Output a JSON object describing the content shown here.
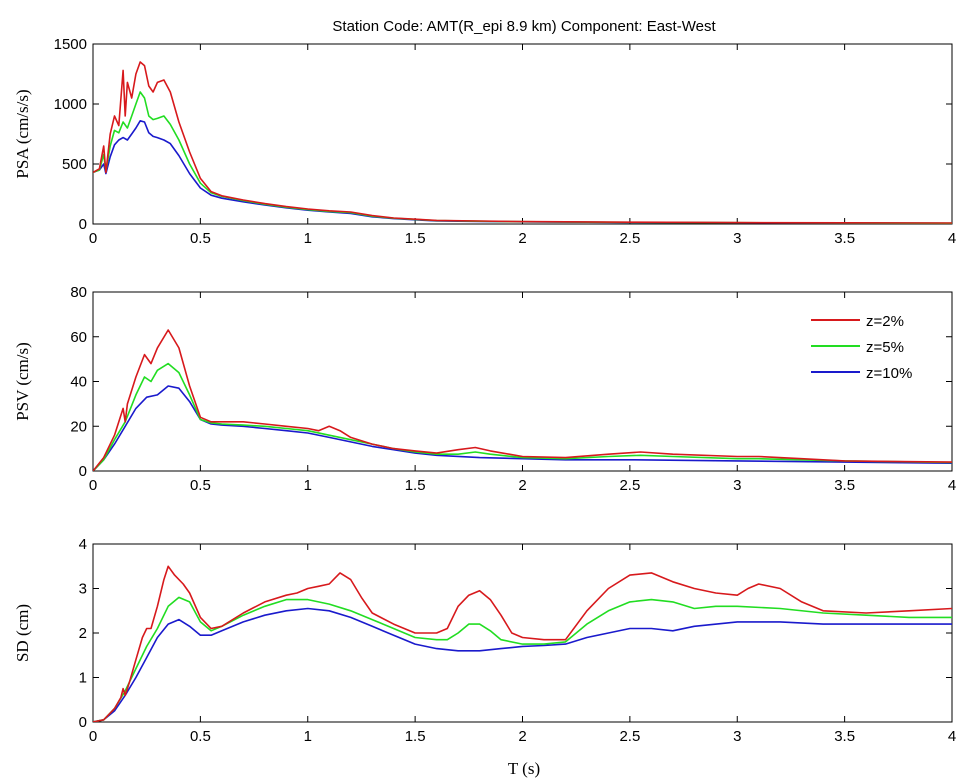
{
  "figure": {
    "title": "Station Code: AMT(R_epi 8.9 km) Component: East-West",
    "xlabel": "T (s)"
  },
  "colors": {
    "z2": "#d7191c",
    "z5": "#22dd22",
    "z10": "#1a1acc"
  },
  "chart_data": [
    {
      "type": "line",
      "ylabel": "PSA (cm/s/s)",
      "xlim": [
        0,
        4
      ],
      "ylim": [
        0,
        1500
      ],
      "xticks": [
        "0",
        "0.5",
        "1",
        "1.5",
        "2",
        "2.5",
        "3",
        "3.5",
        "4"
      ],
      "yticks": [
        "0",
        "500",
        "1000",
        "1500"
      ],
      "grid": false,
      "series": [
        {
          "key": "z2",
          "x": [
            0,
            0.03,
            0.05,
            0.06,
            0.08,
            0.1,
            0.12,
            0.14,
            0.15,
            0.16,
            0.18,
            0.2,
            0.22,
            0.24,
            0.26,
            0.28,
            0.3,
            0.33,
            0.36,
            0.4,
            0.45,
            0.5,
            0.55,
            0.6,
            0.7,
            0.8,
            0.9,
            1.0,
            1.1,
            1.2,
            1.3,
            1.4,
            1.5,
            1.6,
            1.8,
            2.0,
            2.2,
            2.5,
            3.0,
            3.5,
            4.0
          ],
          "y": [
            430,
            460,
            650,
            430,
            750,
            900,
            820,
            1280,
            900,
            1180,
            1050,
            1250,
            1350,
            1320,
            1150,
            1100,
            1180,
            1200,
            1100,
            850,
            600,
            380,
            270,
            235,
            200,
            170,
            145,
            125,
            110,
            100,
            70,
            50,
            40,
            30,
            25,
            20,
            18,
            15,
            12,
            10,
            8
          ]
        },
        {
          "key": "z5",
          "x": [
            0,
            0.03,
            0.05,
            0.06,
            0.08,
            0.1,
            0.12,
            0.14,
            0.16,
            0.18,
            0.2,
            0.22,
            0.24,
            0.26,
            0.28,
            0.3,
            0.33,
            0.36,
            0.4,
            0.45,
            0.5,
            0.55,
            0.6,
            0.7,
            0.8,
            0.9,
            1.0,
            1.1,
            1.2,
            1.3,
            1.4,
            1.5,
            1.6,
            1.8,
            2.0,
            2.2,
            2.5,
            3.0,
            3.5,
            4.0
          ],
          "y": [
            430,
            450,
            580,
            440,
            650,
            780,
            760,
            850,
            800,
            900,
            1000,
            1100,
            1050,
            900,
            870,
            880,
            900,
            830,
            700,
            500,
            340,
            260,
            230,
            195,
            165,
            140,
            120,
            105,
            95,
            65,
            48,
            38,
            28,
            23,
            19,
            17,
            14,
            11,
            9,
            7
          ]
        },
        {
          "key": "z10",
          "x": [
            0,
            0.03,
            0.05,
            0.06,
            0.08,
            0.1,
            0.12,
            0.14,
            0.16,
            0.18,
            0.2,
            0.22,
            0.24,
            0.26,
            0.28,
            0.3,
            0.33,
            0.36,
            0.4,
            0.45,
            0.5,
            0.55,
            0.6,
            0.7,
            0.8,
            0.9,
            1.0,
            1.1,
            1.2,
            1.3,
            1.4,
            1.5,
            1.6,
            1.8,
            2.0,
            2.2,
            2.5,
            3.0,
            3.5,
            4.0
          ],
          "y": [
            430,
            450,
            500,
            420,
            560,
            660,
            700,
            720,
            700,
            750,
            800,
            860,
            850,
            760,
            730,
            720,
            700,
            670,
            570,
            420,
            300,
            240,
            215,
            185,
            158,
            135,
            115,
            100,
            88,
            60,
            45,
            35,
            26,
            21,
            18,
            16,
            13,
            10,
            8,
            6
          ]
        }
      ]
    },
    {
      "type": "line",
      "ylabel": "PSV (cm/s)",
      "xlim": [
        0,
        4
      ],
      "ylim": [
        0,
        80
      ],
      "xticks": [
        "0",
        "0.5",
        "1",
        "1.5",
        "2",
        "2.5",
        "3",
        "3.5",
        "4"
      ],
      "yticks": [
        "0",
        "20",
        "40",
        "60",
        "80"
      ],
      "grid": false,
      "legend": {
        "placement": "top-right",
        "entries": [
          {
            "key": "z2",
            "label": "z=2%"
          },
          {
            "key": "z5",
            "label": "z=5%"
          },
          {
            "key": "z10",
            "label": "z=10%"
          }
        ]
      },
      "series": [
        {
          "key": "z2",
          "x": [
            0,
            0.05,
            0.1,
            0.14,
            0.15,
            0.16,
            0.2,
            0.24,
            0.27,
            0.3,
            0.35,
            0.4,
            0.45,
            0.5,
            0.55,
            0.6,
            0.7,
            0.8,
            0.9,
            1.0,
            1.05,
            1.1,
            1.15,
            1.2,
            1.3,
            1.4,
            1.5,
            1.6,
            1.7,
            1.78,
            1.85,
            2.0,
            2.2,
            2.4,
            2.55,
            2.7,
            3.0,
            3.1,
            3.3,
            3.5,
            4.0
          ],
          "y": [
            0,
            6,
            16,
            28,
            22,
            30,
            42,
            52,
            48,
            55,
            63,
            55,
            38,
            24,
            22,
            22,
            22,
            21,
            20,
            19,
            18,
            20,
            18,
            15,
            12,
            10,
            9,
            8,
            9.5,
            10.5,
            9,
            6.5,
            6,
            7.5,
            8.5,
            7.5,
            6.5,
            6.5,
            5.5,
            4.5,
            4
          ]
        },
        {
          "key": "z5",
          "x": [
            0,
            0.05,
            0.1,
            0.15,
            0.2,
            0.24,
            0.27,
            0.3,
            0.35,
            0.4,
            0.45,
            0.5,
            0.55,
            0.6,
            0.7,
            0.8,
            0.9,
            1.0,
            1.1,
            1.2,
            1.3,
            1.4,
            1.5,
            1.6,
            1.7,
            1.78,
            1.85,
            2.0,
            2.2,
            2.4,
            2.55,
            2.7,
            3.0,
            3.1,
            3.3,
            3.5,
            4.0
          ],
          "y": [
            0,
            5,
            14,
            22,
            34,
            42,
            40,
            45,
            48,
            44,
            34,
            23,
            21.5,
            21,
            20.5,
            20,
            19,
            18,
            16,
            14,
            12,
            10,
            8.5,
            7.5,
            7.5,
            8.5,
            7.5,
            6,
            5.5,
            6.5,
            7,
            6.5,
            5.5,
            5.5,
            5,
            4.5,
            3.8
          ]
        },
        {
          "key": "z10",
          "x": [
            0,
            0.05,
            0.1,
            0.15,
            0.2,
            0.25,
            0.3,
            0.35,
            0.4,
            0.45,
            0.5,
            0.55,
            0.6,
            0.7,
            0.8,
            0.9,
            1.0,
            1.1,
            1.2,
            1.3,
            1.4,
            1.5,
            1.6,
            1.8,
            2.0,
            2.2,
            2.5,
            3.0,
            3.5,
            4.0
          ],
          "y": [
            0,
            5,
            12,
            20,
            28,
            33,
            34,
            38,
            37,
            31,
            23,
            21,
            20.5,
            20,
            19,
            18,
            17,
            15,
            13,
            11,
            9.5,
            8,
            7,
            6,
            5.5,
            5,
            5,
            4.5,
            4,
            3.5
          ]
        }
      ]
    },
    {
      "type": "line",
      "ylabel": "SD (cm)",
      "xlim": [
        0,
        4
      ],
      "ylim": [
        0,
        4
      ],
      "xticks": [
        "0",
        "0.5",
        "1",
        "1.5",
        "2",
        "2.5",
        "3",
        "3.5",
        "4"
      ],
      "yticks": [
        "0",
        "1",
        "2",
        "3",
        "4"
      ],
      "grid": false,
      "series": [
        {
          "key": "z2",
          "x": [
            0,
            0.05,
            0.1,
            0.13,
            0.14,
            0.15,
            0.17,
            0.2,
            0.23,
            0.25,
            0.27,
            0.3,
            0.33,
            0.35,
            0.38,
            0.42,
            0.45,
            0.5,
            0.55,
            0.6,
            0.7,
            0.8,
            0.9,
            0.95,
            1.0,
            1.05,
            1.1,
            1.12,
            1.15,
            1.2,
            1.25,
            1.3,
            1.4,
            1.5,
            1.6,
            1.65,
            1.7,
            1.75,
            1.8,
            1.85,
            1.9,
            1.95,
            2.0,
            2.1,
            2.2,
            2.3,
            2.4,
            2.5,
            2.6,
            2.7,
            2.8,
            2.9,
            3.0,
            3.05,
            3.1,
            3.2,
            3.3,
            3.4,
            3.6,
            3.8,
            4.0
          ],
          "y": [
            0,
            0.05,
            0.3,
            0.55,
            0.75,
            0.6,
            0.9,
            1.4,
            1.9,
            2.1,
            2.1,
            2.6,
            3.2,
            3.5,
            3.3,
            3.1,
            2.9,
            2.35,
            2.1,
            2.15,
            2.45,
            2.7,
            2.85,
            2.9,
            3.0,
            3.05,
            3.1,
            3.2,
            3.35,
            3.2,
            2.8,
            2.45,
            2.2,
            2.0,
            2.0,
            2.1,
            2.6,
            2.85,
            2.95,
            2.75,
            2.4,
            2.0,
            1.9,
            1.85,
            1.85,
            2.5,
            3.0,
            3.3,
            3.35,
            3.15,
            3.0,
            2.9,
            2.85,
            3.0,
            3.1,
            3.0,
            2.7,
            2.5,
            2.45,
            2.5,
            2.55
          ]
        },
        {
          "key": "z5",
          "x": [
            0,
            0.05,
            0.1,
            0.15,
            0.2,
            0.25,
            0.3,
            0.35,
            0.4,
            0.45,
            0.5,
            0.55,
            0.6,
            0.7,
            0.8,
            0.9,
            1.0,
            1.1,
            1.2,
            1.3,
            1.4,
            1.5,
            1.6,
            1.65,
            1.7,
            1.75,
            1.8,
            1.85,
            1.9,
            2.0,
            2.1,
            2.2,
            2.3,
            2.4,
            2.5,
            2.6,
            2.7,
            2.8,
            2.9,
            3.0,
            3.2,
            3.4,
            3.6,
            3.8,
            4.0
          ],
          "y": [
            0,
            0.05,
            0.3,
            0.7,
            1.2,
            1.7,
            2.1,
            2.6,
            2.8,
            2.7,
            2.25,
            2.05,
            2.15,
            2.4,
            2.6,
            2.75,
            2.75,
            2.65,
            2.5,
            2.3,
            2.1,
            1.9,
            1.85,
            1.85,
            2.0,
            2.2,
            2.2,
            2.05,
            1.85,
            1.75,
            1.75,
            1.8,
            2.2,
            2.5,
            2.7,
            2.75,
            2.7,
            2.55,
            2.6,
            2.6,
            2.55,
            2.45,
            2.4,
            2.35,
            2.35
          ]
        },
        {
          "key": "z10",
          "x": [
            0,
            0.05,
            0.1,
            0.15,
            0.2,
            0.25,
            0.3,
            0.35,
            0.4,
            0.45,
            0.5,
            0.55,
            0.6,
            0.7,
            0.8,
            0.9,
            1.0,
            1.1,
            1.2,
            1.3,
            1.4,
            1.5,
            1.6,
            1.7,
            1.8,
            1.9,
            2.0,
            2.1,
            2.2,
            2.3,
            2.4,
            2.5,
            2.6,
            2.7,
            2.8,
            3.0,
            3.2,
            3.4,
            3.6,
            3.8,
            4.0
          ],
          "y": [
            0,
            0.05,
            0.25,
            0.6,
            1.0,
            1.45,
            1.9,
            2.2,
            2.3,
            2.15,
            1.95,
            1.95,
            2.05,
            2.25,
            2.4,
            2.5,
            2.55,
            2.5,
            2.35,
            2.15,
            1.95,
            1.75,
            1.65,
            1.6,
            1.6,
            1.65,
            1.7,
            1.72,
            1.75,
            1.9,
            2.0,
            2.1,
            2.1,
            2.05,
            2.15,
            2.25,
            2.25,
            2.2,
            2.2,
            2.2,
            2.2
          ]
        }
      ]
    }
  ]
}
